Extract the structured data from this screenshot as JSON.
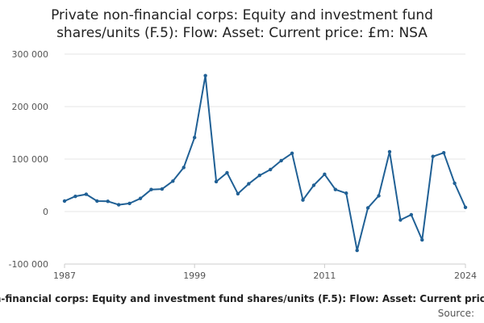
{
  "chart_data": {
    "type": "line",
    "title_lines": [
      "Private non-financial corps: Equity and investment fund",
      "shares/units (F.5): Flow: Asset: Current price: £m: NSA"
    ],
    "xlabel": "",
    "ylabel": "",
    "x_tick_labels": [
      "1987",
      "1999",
      "2011",
      "2024"
    ],
    "y_tick_labels": [
      "300 000",
      "200 000",
      "100 000",
      "0",
      "-100 000"
    ],
    "xlim": [
      1987,
      2024
    ],
    "ylim": [
      -100000,
      300000
    ],
    "y_ticks": [
      -100000,
      0,
      100000,
      200000,
      300000
    ],
    "x_ticks": [
      1987,
      1999,
      2011,
      2024
    ],
    "grid": true,
    "legend_position": "bottom",
    "series": [
      {
        "name": "Private non-financial corps: Equity and investment fund shares/units (F.5): Flow: Asset: Current price: £m: NSA",
        "color": "#206095",
        "x": [
          1987,
          1988,
          1989,
          1990,
          1991,
          1992,
          1993,
          1994,
          1995,
          1996,
          1997,
          1998,
          1999,
          2000,
          2001,
          2002,
          2003,
          2004,
          2005,
          2006,
          2007,
          2008,
          2009,
          2010,
          2011,
          2012,
          2013,
          2014,
          2015,
          2016,
          2017,
          2018,
          2019,
          2020,
          2021,
          2022,
          2023,
          2024
        ],
        "values": [
          20000,
          29000,
          33000,
          20000,
          19500,
          13000,
          15500,
          25000,
          42000,
          43000,
          58000,
          84000,
          141000,
          259000,
          57000,
          74000,
          34000,
          53000,
          69000,
          80000,
          97000,
          111000,
          22000,
          50000,
          71000,
          42000,
          35000,
          -74000,
          7000,
          30000,
          114000,
          -16000,
          -6000,
          -54000,
          105000,
          112000,
          54000,
          8000
        ]
      }
    ],
    "source_label": "Source:"
  }
}
